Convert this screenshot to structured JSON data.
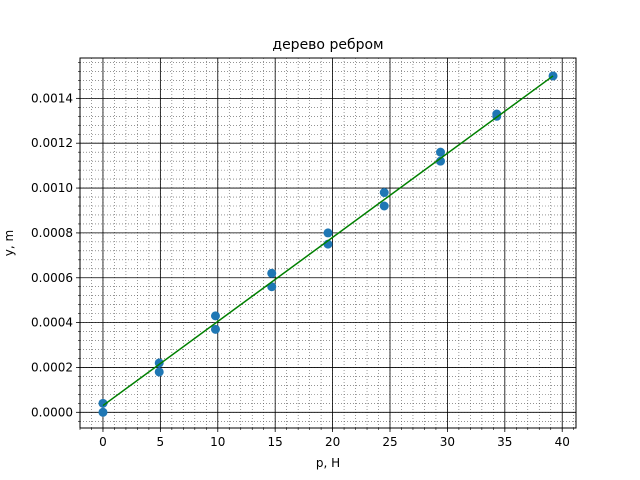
{
  "chart_data": {
    "type": "scatter",
    "title": "дерево ребром",
    "xlabel": "p, Н",
    "ylabel": "y, m",
    "xlim": [
      -2.0,
      41.2
    ],
    "ylim": [
      -7e-05,
      0.00158
    ],
    "x_ticks": [
      0,
      5,
      10,
      15,
      20,
      25,
      30,
      35,
      40
    ],
    "x_tick_labels": [
      "0",
      "5",
      "10",
      "15",
      "20",
      "25",
      "30",
      "35",
      "40"
    ],
    "y_ticks": [
      0,
      0.0002,
      0.0004,
      0.0006,
      0.0008,
      0.001,
      0.0012,
      0.0014
    ],
    "y_tick_labels": [
      "0.0000",
      "0.0002",
      "0.0004",
      "0.0006",
      "0.0008",
      "0.0010",
      "0.0012",
      "0.0014"
    ],
    "grid": {
      "major": true,
      "minor": true
    },
    "series": [
      {
        "type": "scatter",
        "color": "#1f77b4",
        "points": [
          {
            "x": 0,
            "y": 4e-05
          },
          {
            "x": 0,
            "y": 0.0
          },
          {
            "x": 4.9,
            "y": 0.00022
          },
          {
            "x": 4.9,
            "y": 0.00018
          },
          {
            "x": 9.8,
            "y": 0.00043
          },
          {
            "x": 9.8,
            "y": 0.00037
          },
          {
            "x": 14.7,
            "y": 0.00062
          },
          {
            "x": 14.7,
            "y": 0.00056
          },
          {
            "x": 19.6,
            "y": 0.0008
          },
          {
            "x": 19.6,
            "y": 0.00075
          },
          {
            "x": 24.5,
            "y": 0.00098
          },
          {
            "x": 24.5,
            "y": 0.00092
          },
          {
            "x": 29.4,
            "y": 0.00116
          },
          {
            "x": 29.4,
            "y": 0.00112
          },
          {
            "x": 34.3,
            "y": 0.00133
          },
          {
            "x": 34.3,
            "y": 0.00132
          },
          {
            "x": 39.2,
            "y": 0.0015
          }
        ]
      },
      {
        "type": "line",
        "color": "#008000",
        "x": [
          0,
          39.2
        ],
        "y": [
          3e-05,
          0.0015
        ]
      }
    ]
  }
}
